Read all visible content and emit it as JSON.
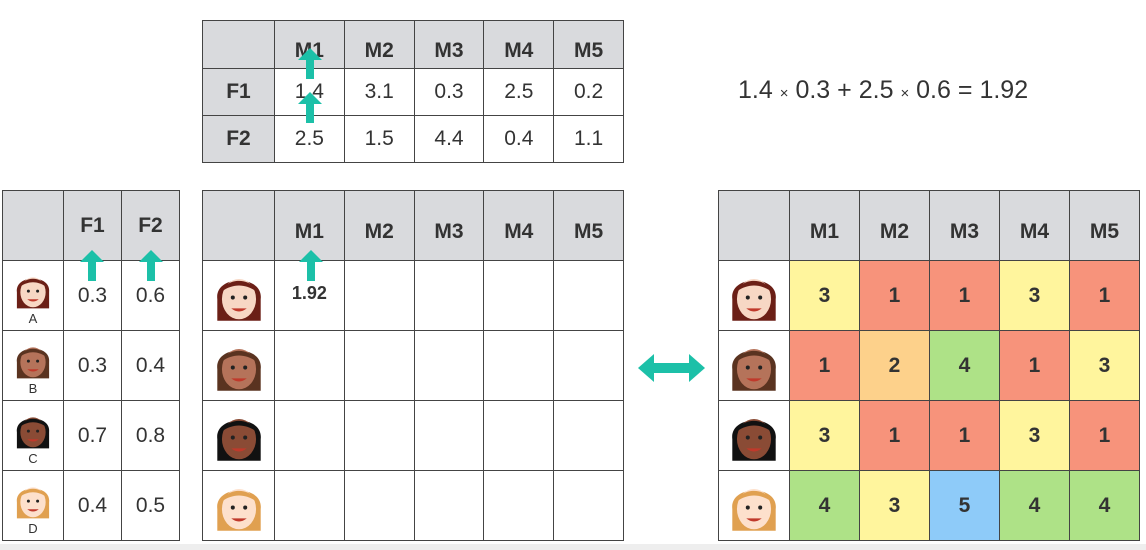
{
  "movies": [
    "M1",
    "M2",
    "M3",
    "M4",
    "M5"
  ],
  "features": [
    "F1",
    "F2"
  ],
  "movie_features": [
    [
      "1.4",
      "3.1",
      "0.3",
      "2.5",
      "0.2"
    ],
    [
      "2.5",
      "1.5",
      "4.4",
      "0.4",
      "1.1"
    ]
  ],
  "users": [
    {
      "label": "A",
      "f": [
        "0.3",
        "0.6"
      ],
      "hair": "#6b1f16",
      "skin": "#f7d7c4"
    },
    {
      "label": "B",
      "f": [
        "0.3",
        "0.4"
      ],
      "hair": "#5a3320",
      "skin": "#b5735a"
    },
    {
      "label": "C",
      "f": [
        "0.7",
        "0.8"
      ],
      "hair": "#111111",
      "skin": "#8a4b35"
    },
    {
      "label": "D",
      "f": [
        "0.4",
        "0.5"
      ],
      "hair": "#e0a050",
      "skin": "#fde0cc"
    }
  ],
  "predicted": [
    [
      "1.92",
      "",
      "",
      "",
      ""
    ],
    [
      "",
      "",
      "",
      "",
      ""
    ],
    [
      "",
      "",
      "",
      "",
      ""
    ],
    [
      "",
      "",
      "",
      "",
      ""
    ]
  ],
  "ratings": [
    [
      "3",
      "1",
      "1",
      "3",
      "1"
    ],
    [
      "1",
      "2",
      "4",
      "1",
      "3"
    ],
    [
      "3",
      "1",
      "1",
      "3",
      "1"
    ],
    [
      "4",
      "3",
      "5",
      "4",
      "4"
    ]
  ],
  "rating_colors": {
    "1": "#f7937b",
    "2": "#fdd18b",
    "3": "#fff59d",
    "4": "#aee287",
    "5": "#8ecbf9"
  },
  "equation": {
    "a": "1.4",
    "b": "0.3",
    "c": "2.5",
    "d": "0.6",
    "times": "×",
    "plus": "+",
    "eq": "=",
    "result": "1.92"
  },
  "accent": "#1cc0a8"
}
